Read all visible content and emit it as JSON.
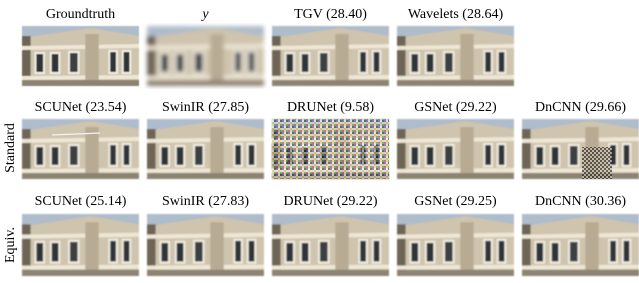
{
  "rows": [
    {
      "panels": [
        "Groundtruth",
        "y",
        "TGV (28.40)",
        "Wavelets (28.64)"
      ]
    },
    {
      "label": "Standard",
      "panels": [
        "SCUNet (23.54)",
        "SwinIR (27.85)",
        "DRUNet (9.58)",
        "GSNet (29.22)",
        "DnCNN (29.66)"
      ]
    },
    {
      "label": "Equiv.",
      "panels": [
        "SCUNet (25.14)",
        "SwinIR (27.83)",
        "DRUNet (29.22)",
        "GSNet (29.25)",
        "DnCNN (30.36)"
      ]
    }
  ]
}
